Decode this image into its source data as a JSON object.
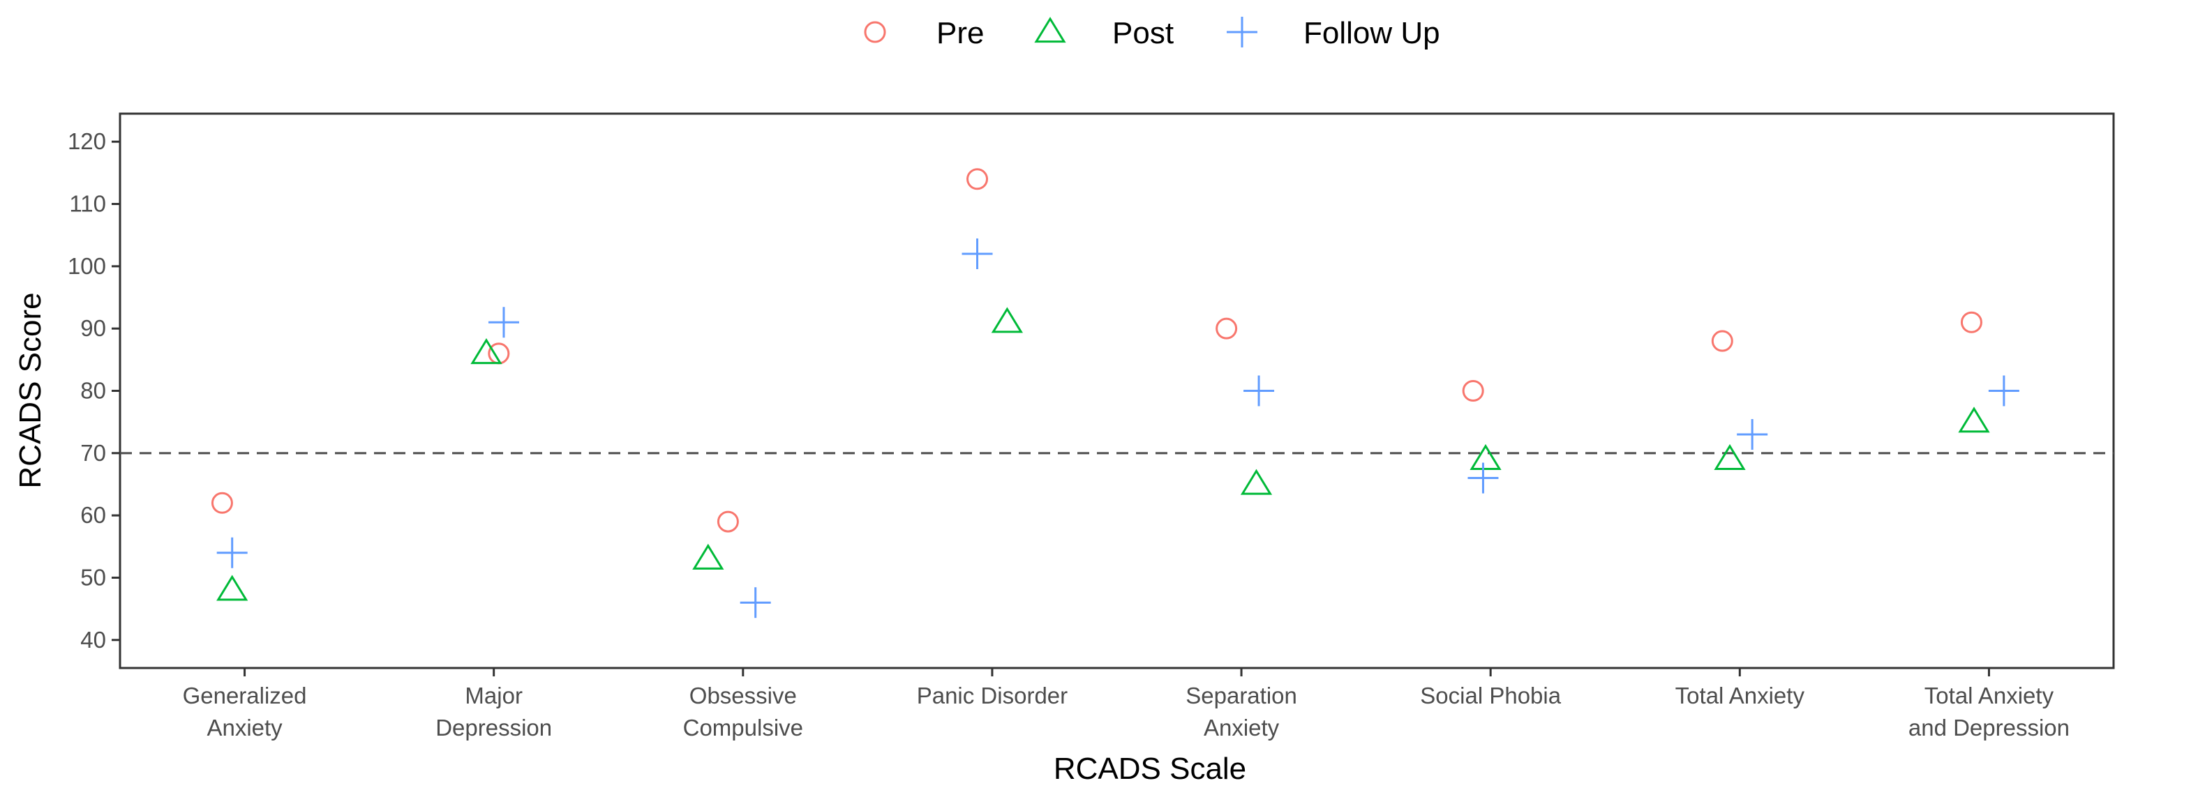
{
  "chart_data": {
    "type": "scatter",
    "xlabel": "RCADS Scale",
    "ylabel": "RCADS Score",
    "ylim": [
      35.5,
      124.5
    ],
    "yticks": [
      40,
      50,
      60,
      70,
      80,
      90,
      100,
      110,
      120
    ],
    "grid": false,
    "reference_line": {
      "y": 70,
      "style": "dashed"
    },
    "legend_position": "top",
    "categories": [
      [
        "Generalized",
        "Anxiety"
      ],
      [
        "Major",
        "Depression"
      ],
      [
        "Obsessive",
        "Compulsive"
      ],
      [
        "Panic Disorder"
      ],
      [
        "Separation",
        "Anxiety"
      ],
      [
        "Social Phobia"
      ],
      [
        "Total Anxiety"
      ],
      [
        "Total Anxiety",
        "and Depression"
      ]
    ],
    "series": [
      {
        "name": "Pre",
        "shape": "circle",
        "color": "#F8766D",
        "jitter": [
          -0.09,
          0.02,
          -0.06,
          -0.06,
          -0.06,
          -0.07,
          -0.07,
          -0.07
        ],
        "values": [
          62,
          86,
          59,
          114,
          90,
          80,
          88,
          91
        ]
      },
      {
        "name": "Post",
        "shape": "triangle",
        "color": "#00BA38",
        "jitter": [
          -0.05,
          -0.03,
          -0.14,
          0.06,
          0.06,
          -0.02,
          -0.04,
          -0.06
        ],
        "values": [
          48,
          86,
          53,
          91,
          65,
          69,
          69,
          75
        ]
      },
      {
        "name": "Follow Up",
        "shape": "plus",
        "color": "#619CFF",
        "jitter": [
          -0.05,
          0.04,
          0.05,
          -0.06,
          0.07,
          -0.03,
          0.05,
          0.06
        ],
        "values": [
          54,
          91,
          46,
          102,
          80,
          66,
          73,
          80
        ]
      }
    ]
  }
}
